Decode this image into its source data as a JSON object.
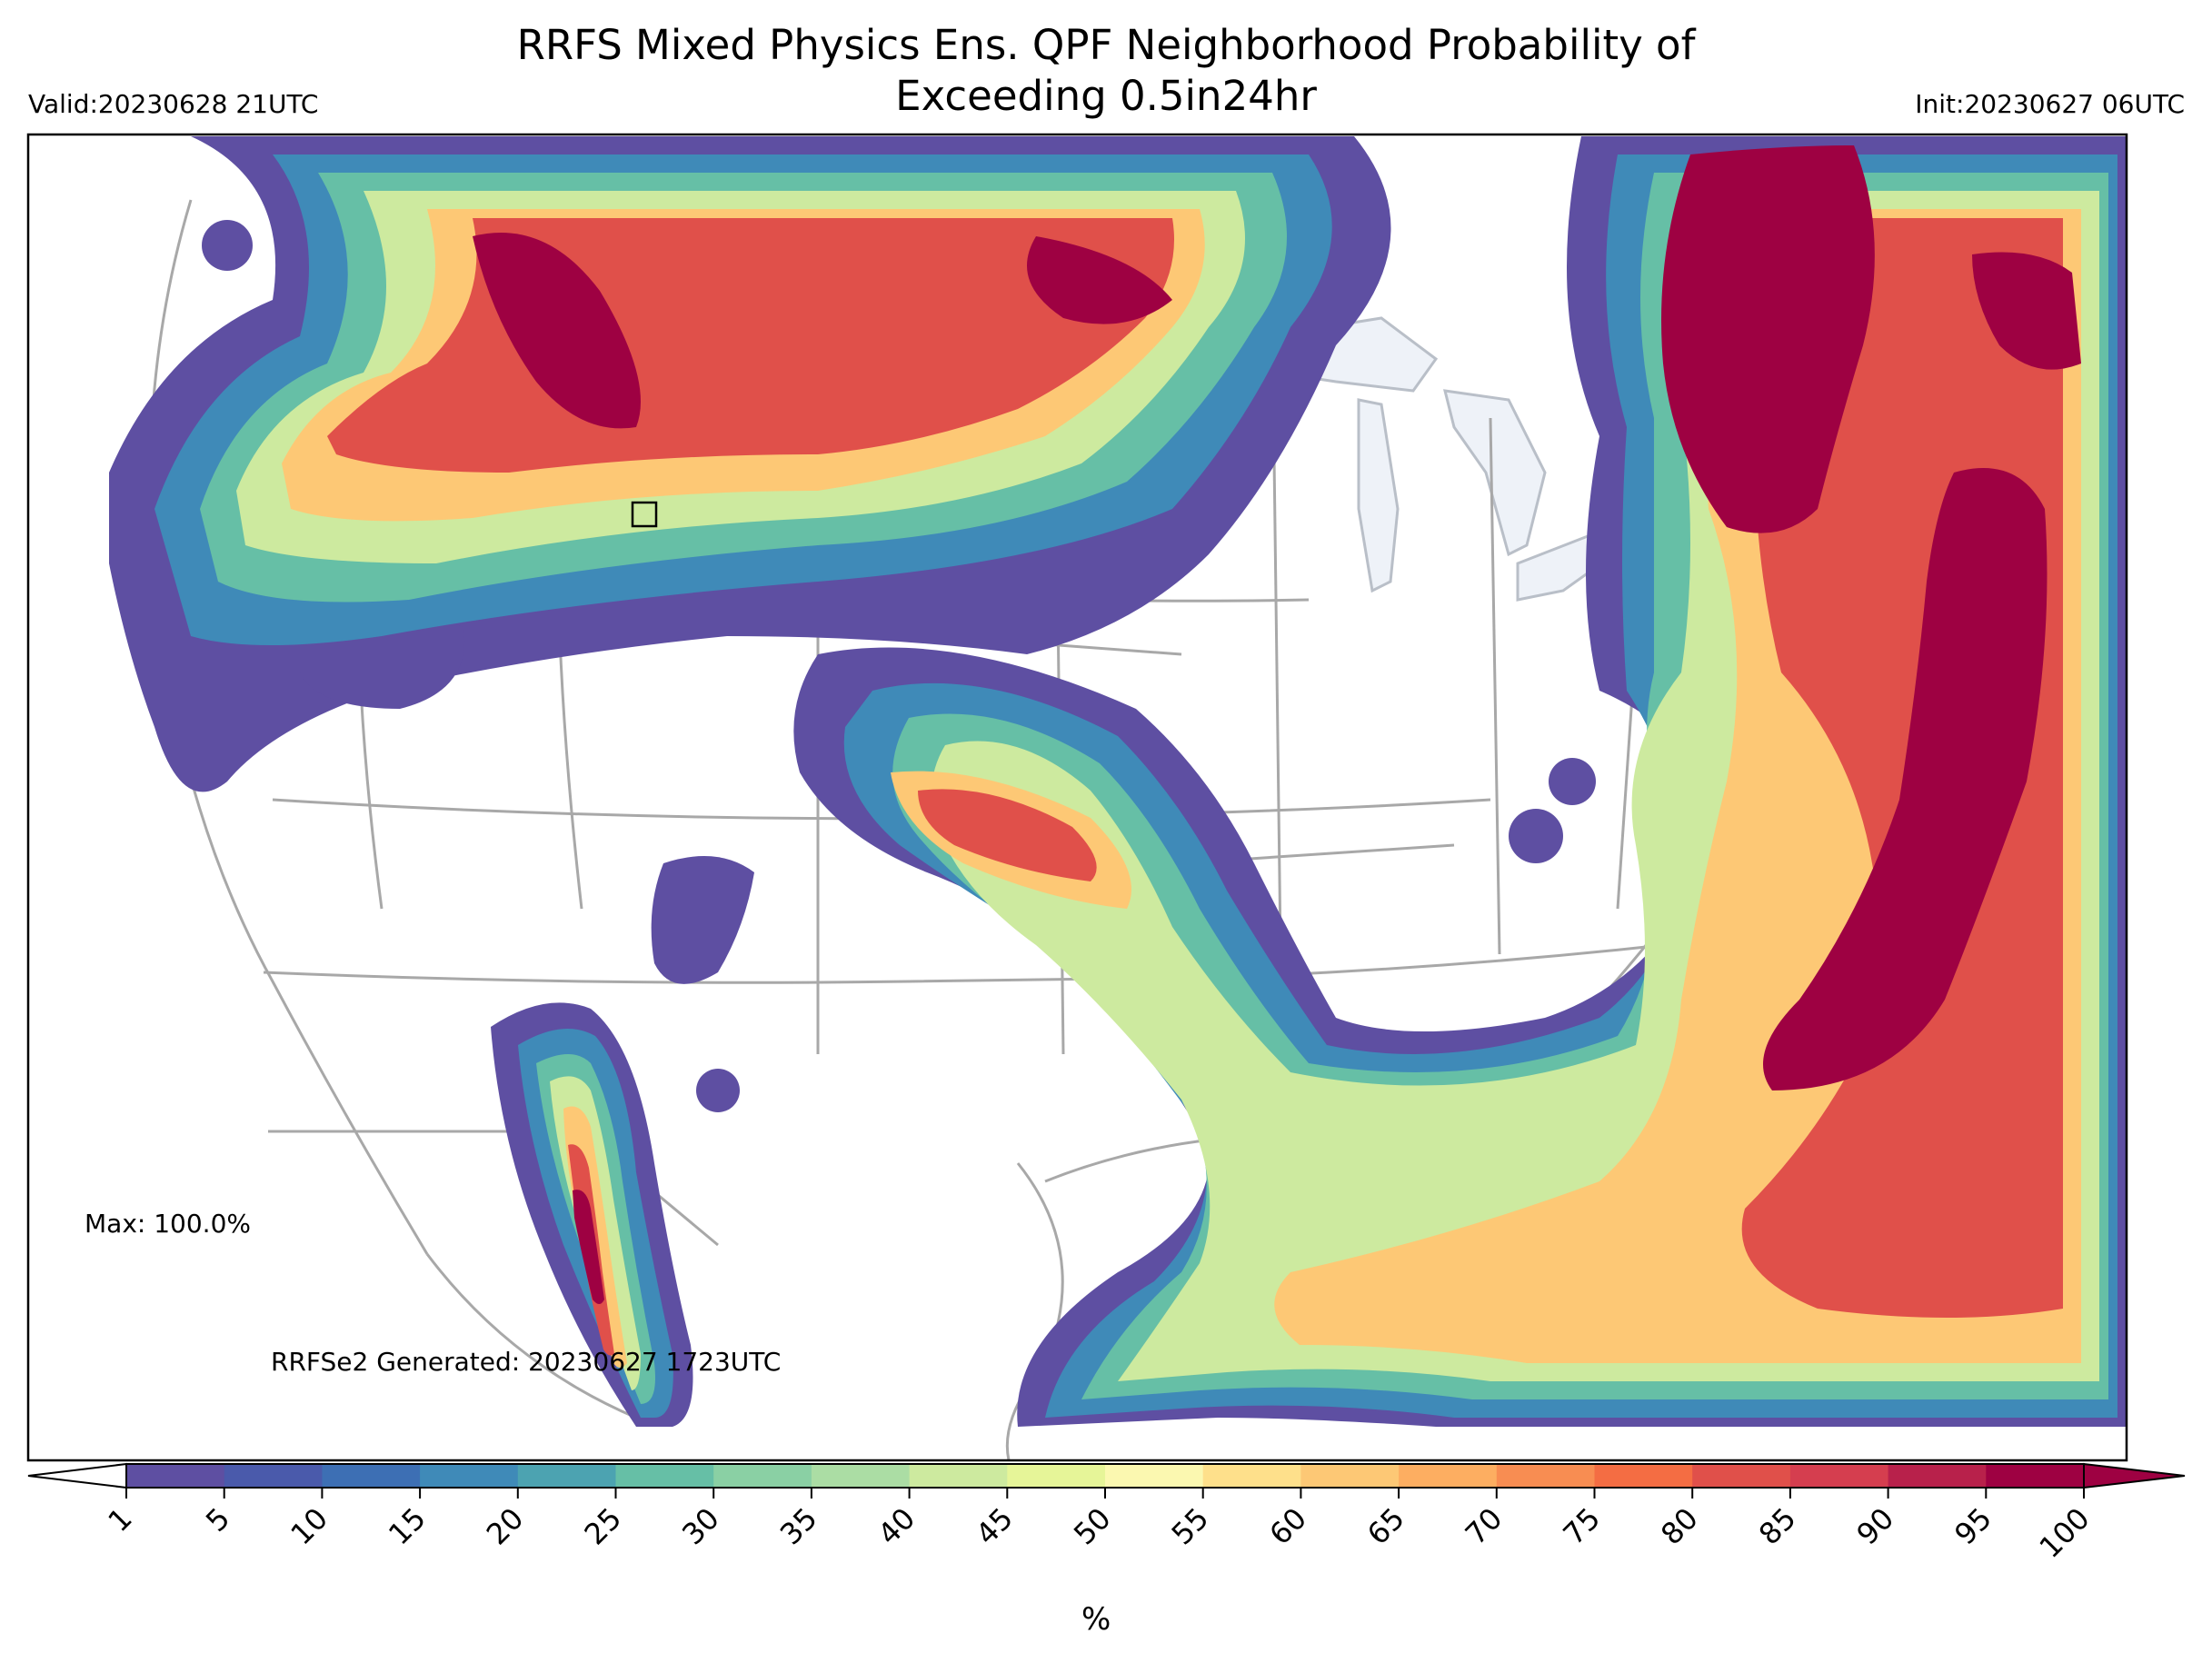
{
  "title": {
    "line1": "RRFS Mixed Physics Ens. QPF Neighborhood Probability of",
    "line2": "Exceeding 0.5in24hr"
  },
  "valid_label": "Valid:20230628 21UTC",
  "init_label": "Init:20230627 06UTC",
  "max_label": "Max: 100.0%",
  "generated_label": "RRFSe2 Generated: 20230627 1723UTC",
  "colorbar": {
    "unit": "%",
    "ticks": [
      "1",
      "5",
      "10",
      "15",
      "20",
      "25",
      "30",
      "35",
      "40",
      "45",
      "50",
      "55",
      "60",
      "65",
      "70",
      "75",
      "80",
      "85",
      "90",
      "95",
      "100"
    ],
    "colors": [
      "#5e4fa2",
      "#4a5aab",
      "#3d6fb4",
      "#3f8ab8",
      "#4ca3b1",
      "#66bfa6",
      "#8ad0a4",
      "#abdda4",
      "#cdea9f",
      "#e6f598",
      "#fbf8b0",
      "#fee08b",
      "#fdc875",
      "#fdae61",
      "#f88d52",
      "#f46d43",
      "#e0504a",
      "#d53e4f",
      "#b8214b",
      "#9e0142"
    ]
  },
  "colors": {
    "background": "#ffffff",
    "lakes": "#eef2f8",
    "borders": "#a8a8a8",
    "frame": "#000000"
  }
}
